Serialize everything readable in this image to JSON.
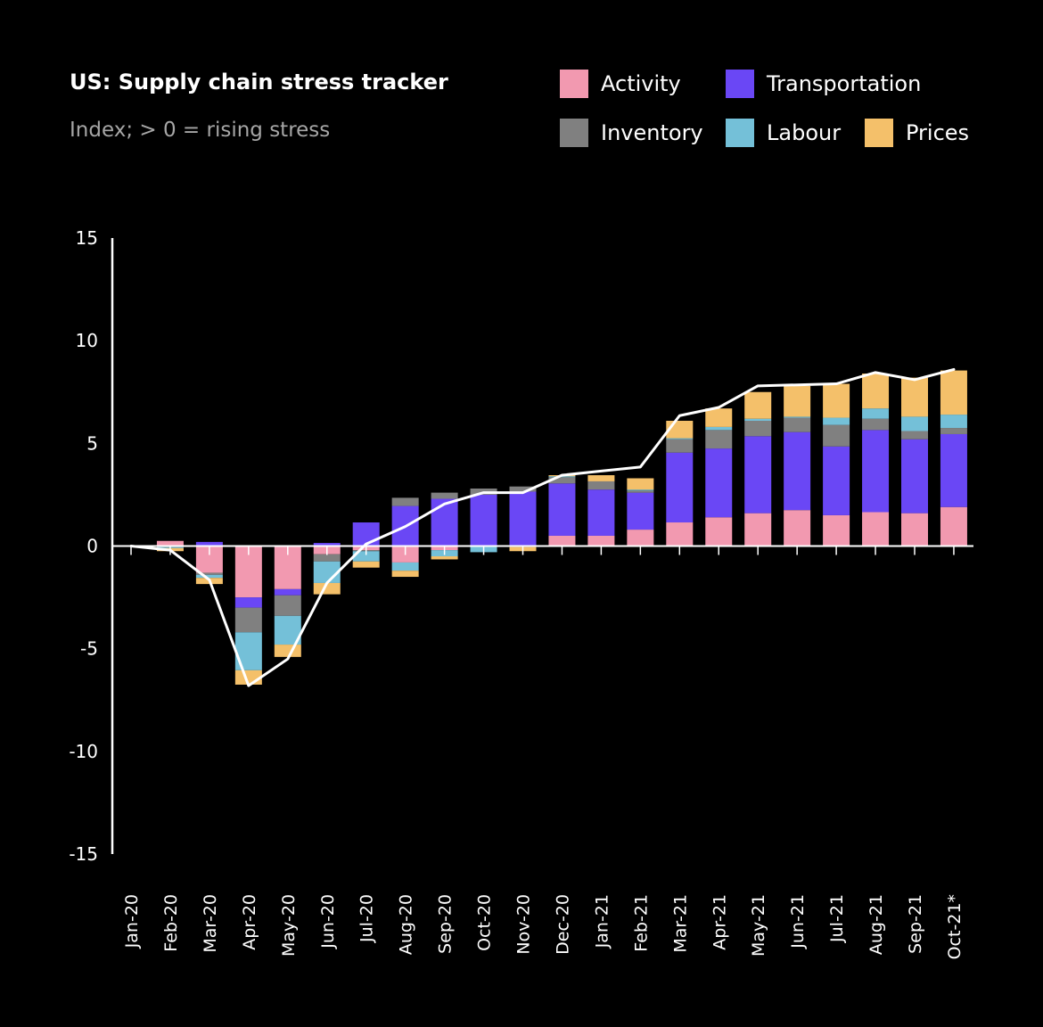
{
  "chart_data": {
    "type": "bar",
    "stacked": true,
    "title": "US: Supply chain stress tracker",
    "subtitle": "Index; > 0 = rising stress",
    "categories": [
      "Jan-20",
      "Feb-20",
      "Mar-20",
      "Apr-20",
      "May-20",
      "Jun-20",
      "Jul-20",
      "Aug-20",
      "Sep-20",
      "Oct-20",
      "Nov-20",
      "Dec-20",
      "Jan-21",
      "Feb-21",
      "Mar-21",
      "Apr-21",
      "May-21",
      "Jun-21",
      "Jul-21",
      "Aug-21",
      "Sep-21",
      "Oct-21*"
    ],
    "ylim": [
      -15,
      15
    ],
    "yticks": [
      15,
      10,
      5,
      0,
      -5,
      -10,
      -15
    ],
    "legend_position": "top-right",
    "series": [
      {
        "name": "Activity",
        "color": "#f299b0",
        "values": [
          0,
          0.25,
          -1.3,
          -2.5,
          -2.1,
          -0.4,
          -0.2,
          -0.8,
          -0.2,
          0,
          -0.05,
          0.5,
          0.5,
          0.8,
          1.15,
          1.4,
          1.6,
          1.75,
          1.5,
          1.65,
          1.6,
          1.9
        ]
      },
      {
        "name": "Transportation",
        "color": "#6a47f5",
        "values": [
          0,
          0,
          0.2,
          -0.5,
          -0.3,
          0.15,
          1.15,
          1.95,
          2.3,
          2.5,
          2.65,
          2.55,
          2.25,
          1.8,
          3.4,
          3.35,
          3.75,
          3.8,
          3.35,
          4,
          3.6,
          3.55
        ]
      },
      {
        "name": "Inventory",
        "color": "#808080",
        "values": [
          0,
          -0.05,
          -0.1,
          -1.2,
          -1,
          -0.35,
          -0.05,
          0.4,
          0.3,
          0.3,
          0.25,
          0.3,
          0.4,
          0.1,
          0.65,
          0.9,
          0.75,
          0.7,
          1.05,
          0.55,
          0.4,
          0.3
        ]
      },
      {
        "name": "Labour",
        "color": "#74c0d8",
        "values": [
          0,
          -0.05,
          -0.15,
          -1.85,
          -1.4,
          -1.05,
          -0.5,
          -0.4,
          -0.3,
          -0.3,
          0,
          0.05,
          0,
          0.05,
          0.05,
          0.15,
          0.1,
          0.05,
          0.35,
          0.5,
          0.7,
          0.65
        ]
      },
      {
        "name": "Prices",
        "color": "#f4c06a",
        "values": [
          0,
          -0.15,
          -0.3,
          -0.7,
          -0.6,
          -0.55,
          -0.3,
          -0.3,
          -0.15,
          0,
          -0.2,
          0.05,
          0.3,
          0.55,
          0.85,
          0.9,
          1.3,
          1.5,
          1.65,
          1.7,
          1.9,
          2.15
        ]
      }
    ],
    "net_line": {
      "color": "#ffffff",
      "values": [
        0,
        -0.2,
        -1.65,
        -6.8,
        -5.5,
        -1.8,
        0.1,
        0.95,
        2.05,
        2.6,
        2.6,
        3.45,
        3.65,
        3.85,
        6.35,
        6.75,
        7.8,
        7.85,
        7.9,
        8.45,
        8.1,
        8.6
      ]
    }
  }
}
